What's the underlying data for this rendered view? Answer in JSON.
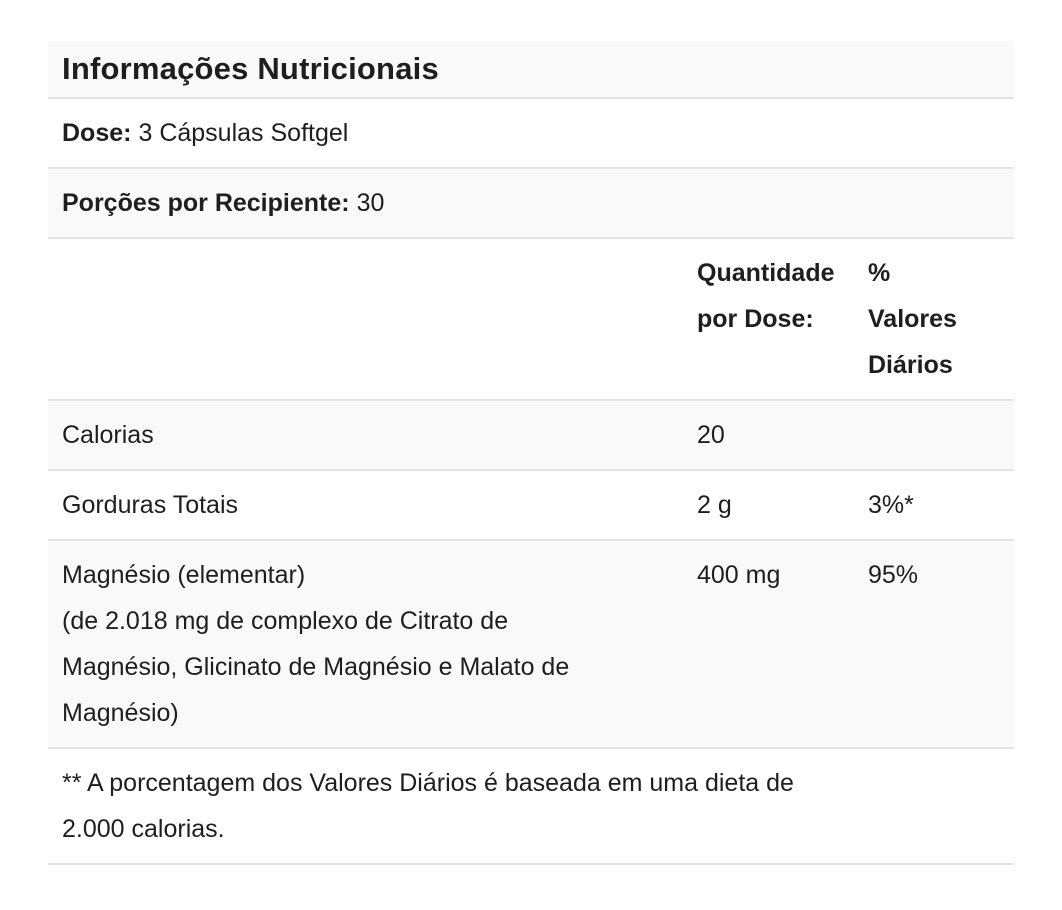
{
  "nutrition_panel": {
    "title": "Informações Nutricionais",
    "meta": [
      {
        "label": "Dose:",
        "value": "3 Cápsulas Softgel"
      },
      {
        "label": "Porções por Recipiente:",
        "value": "30"
      }
    ],
    "columns": {
      "amount_header": "Quantidade\npor Dose:",
      "dv_header": "%\nValores\nDiários"
    },
    "rows": [
      {
        "name": "Calorias",
        "amount": "20",
        "dv": ""
      },
      {
        "name": "Gorduras Totais",
        "amount": "2 g",
        "dv": "3%*"
      },
      {
        "name": "Magnésio (elementar)\n(de 2.018 mg de complexo de Citrato de\nMagnésio, Glicinato de Magnésio e Malato de\nMagnésio)",
        "amount": "400 mg",
        "dv": "95%"
      }
    ],
    "footnote": "** A porcentagem dos Valores Diários é baseada em uma dieta de\n2.000 calorias.",
    "colors": {
      "stripe_background": "#f9f9f9",
      "divider": "#e4e4e4",
      "text": "#1e1e1e"
    }
  }
}
